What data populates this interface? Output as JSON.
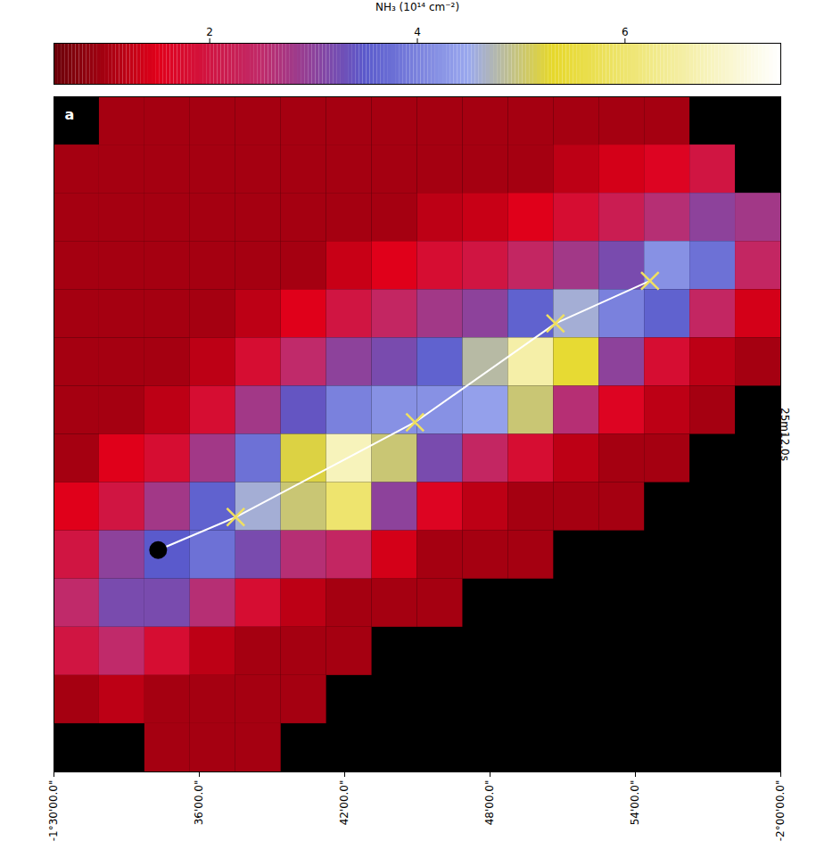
{
  "chart_data": {
    "type": "heatmap",
    "panel": "a",
    "xlim": [
      -90,
      -120
    ],
    "xticks": [
      {
        "value": -90,
        "label": "-1°30'00.0\""
      },
      {
        "value": -96,
        "label": "36'00.0\""
      },
      {
        "value": -102,
        "label": "42'00.0\""
      },
      {
        "value": -108,
        "label": "48'00.0\""
      },
      {
        "value": -114,
        "label": "54'00.0\""
      },
      {
        "value": -120,
        "label": "-2°00'00.0\""
      }
    ],
    "ylim": [
      1470,
      1554
    ],
    "yticks": [
      {
        "value": 1512,
        "label": "25m12.0s"
      }
    ],
    "x_edges": [
      -90,
      -91.875,
      -93.75,
      -95.625,
      -97.5,
      -99.375,
      -101.25,
      -103.125,
      -105,
      -106.875,
      -108.75,
      -110.625,
      -112.5,
      -114.375,
      -116.25,
      -118.125,
      -120
    ],
    "y_edges": [
      1554,
      1548,
      1542,
      1536,
      1530,
      1524,
      1518,
      1512,
      1506,
      1500,
      1494,
      1488,
      1482,
      1476,
      1470
    ],
    "cells": [
      [
        null,
        1,
        1,
        1,
        1,
        1,
        1,
        1,
        1,
        1,
        1,
        1,
        1,
        1,
        null,
        null
      ],
      [
        1,
        1,
        1,
        1,
        1,
        1,
        1,
        1,
        1,
        1,
        1,
        1.2,
        1.4,
        1.6,
        2,
        null
      ],
      [
        1,
        1,
        1,
        1,
        1,
        1,
        1,
        1,
        1.2,
        1.3,
        1.5,
        1.8,
        2.2,
        2.6,
        3,
        2.8
      ],
      [
        1,
        1,
        1,
        1,
        1,
        1,
        1.3,
        1.5,
        1.8,
        2,
        2.4,
        2.8,
        3.2,
        4.2,
        3.8,
        2.4
      ],
      [
        1,
        1,
        1,
        1,
        1.2,
        1.5,
        2,
        2.4,
        2.8,
        3,
        3.6,
        4.6,
        4,
        3.6,
        2.4,
        1.4
      ],
      [
        1,
        1,
        1,
        1.2,
        1.8,
        2.5,
        3,
        3.2,
        3.6,
        4.8,
        6.6,
        5.4,
        3,
        1.8,
        1.2,
        1
      ],
      [
        1,
        1,
        1.2,
        1.8,
        2.8,
        3.4,
        4,
        4.2,
        4.2,
        4.4,
        5,
        2.6,
        1.6,
        1.2,
        1,
        null
      ],
      [
        1,
        1.5,
        1.8,
        2.8,
        3.8,
        5.2,
        6.8,
        5,
        3.2,
        2.4,
        1.8,
        1.2,
        1,
        1,
        null,
        null
      ],
      [
        1.5,
        2,
        2.8,
        3.6,
        4.6,
        5,
        6,
        3,
        1.6,
        1.2,
        1,
        1,
        1,
        null,
        null,
        null
      ],
      [
        2,
        3,
        3.5,
        3.8,
        3.2,
        2.6,
        2.4,
        1.4,
        1,
        1,
        1,
        null,
        null,
        null,
        null,
        null
      ],
      [
        2.5,
        3.2,
        3.2,
        2.6,
        1.8,
        1.2,
        1,
        1,
        1,
        null,
        null,
        null,
        null,
        null,
        null,
        null
      ],
      [
        2,
        2.5,
        1.8,
        1.2,
        1,
        1,
        1,
        null,
        null,
        null,
        null,
        null,
        null,
        null,
        null,
        null
      ],
      [
        1,
        1.2,
        1,
        1,
        1,
        1,
        null,
        null,
        null,
        null,
        null,
        null,
        null,
        null,
        null,
        null
      ],
      [
        null,
        null,
        1,
        1,
        1,
        null,
        null,
        null,
        null,
        null,
        null,
        null,
        null,
        null,
        null,
        null
      ]
    ],
    "colorbar": {
      "label": "NH₃ (10¹⁴ cm⁻²)",
      "lim": [
        0.5,
        7.5
      ],
      "ticks": [
        2,
        4,
        6
      ]
    },
    "cut": {
      "x": [
        -94.3,
        -97.5,
        -104.9,
        -110.7,
        -114.6
      ],
      "y": [
        1497.6,
        1501.7,
        1513.5,
        1525.8,
        1531.1
      ],
      "marker": "x",
      "color": "#f0e060"
    }
  }
}
